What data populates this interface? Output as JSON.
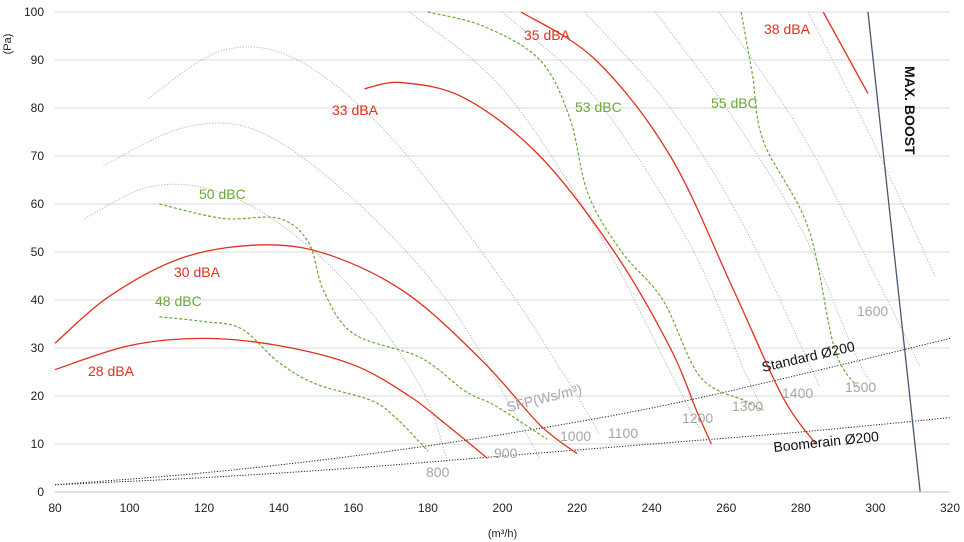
{
  "chart_data": {
    "type": "line",
    "xlabel": "(m³/h)",
    "ylabel": "(Pa)",
    "xlim": [
      80,
      320
    ],
    "ylim": [
      0,
      100
    ],
    "x_ticks": [
      80,
      100,
      120,
      140,
      160,
      180,
      200,
      220,
      240,
      260,
      280,
      300,
      320
    ],
    "y_ticks": [
      0,
      10,
      20,
      30,
      40,
      50,
      60,
      70,
      80,
      90,
      100
    ],
    "grid": "horizontal",
    "colors": {
      "dba": "#e0301e",
      "dbc": "#6aa83a",
      "sfp": "#b4b4b4",
      "duct": "#222222",
      "boost": "#4a5670",
      "grid": "#d9d9d9"
    },
    "sound_power_dba": [
      {
        "name": "28 dBA",
        "points": [
          [
            80,
            25.5
          ],
          [
            100,
            30.5
          ],
          [
            120,
            32
          ],
          [
            140,
            30.5
          ],
          [
            160,
            26.5
          ],
          [
            175,
            20
          ],
          [
            185,
            14
          ],
          [
            196,
            7
          ]
        ]
      },
      {
        "name": "30 dBA",
        "points": [
          [
            80,
            31
          ],
          [
            95,
            41
          ],
          [
            115,
            49
          ],
          [
            137,
            51.5
          ],
          [
            155,
            49
          ],
          [
            175,
            41
          ],
          [
            195,
            27
          ],
          [
            210,
            14
          ],
          [
            220,
            8
          ]
        ]
      },
      {
        "name": "33 dBA",
        "points": [
          [
            163,
            84
          ],
          [
            173,
            85.3
          ],
          [
            190,
            82
          ],
          [
            210,
            70
          ],
          [
            230,
            50
          ],
          [
            245,
            30
          ],
          [
            252,
            17
          ],
          [
            256,
            10
          ]
        ]
      },
      {
        "name": "35 dBA",
        "points": [
          [
            205,
            100
          ],
          [
            225,
            90
          ],
          [
            245,
            70
          ],
          [
            262,
            42
          ],
          [
            275,
            20
          ],
          [
            284,
            10
          ]
        ]
      },
      {
        "name": "38 dBA",
        "points": [
          [
            286,
            100
          ],
          [
            298,
            83
          ]
        ]
      }
    ],
    "sound_pressure_dbc": [
      {
        "name": "48 dBC",
        "points": [
          [
            108,
            36.5
          ],
          [
            120,
            35.5
          ],
          [
            130,
            34
          ],
          [
            140,
            27
          ],
          [
            150,
            22.5
          ],
          [
            165,
            19
          ],
          [
            172,
            15
          ],
          [
            180,
            8.5
          ]
        ]
      },
      {
        "name": "50 dBC",
        "points": [
          [
            108,
            60
          ],
          [
            125,
            57
          ],
          [
            140,
            57
          ],
          [
            148,
            52
          ],
          [
            152,
            42
          ],
          [
            160,
            33
          ],
          [
            178,
            28
          ],
          [
            190,
            21
          ],
          [
            198,
            18
          ],
          [
            212,
            11
          ]
        ]
      },
      {
        "name": "53 dBC",
        "points": [
          [
            180,
            100
          ],
          [
            195,
            97
          ],
          [
            210,
            90
          ],
          [
            218,
            78
          ],
          [
            223,
            62
          ],
          [
            232,
            50
          ],
          [
            243,
            40
          ],
          [
            253,
            24
          ],
          [
            265,
            19
          ],
          [
            270,
            17
          ]
        ]
      },
      {
        "name": "55 dBC",
        "points": [
          [
            264,
            100
          ],
          [
            267,
            87
          ],
          [
            270,
            73
          ],
          [
            282,
            55
          ],
          [
            289,
            30
          ],
          [
            295,
            22
          ]
        ]
      }
    ],
    "sfp_curves": [
      {
        "label": "800",
        "points": [
          [
            88,
            57
          ],
          [
            105,
            63.5
          ],
          [
            122,
            63
          ],
          [
            140,
            56
          ],
          [
            160,
            42
          ],
          [
            178,
            22
          ],
          [
            185,
            7
          ]
        ]
      },
      {
        "label": "900",
        "points": [
          [
            93,
            68
          ],
          [
            115,
            76
          ],
          [
            135,
            75
          ],
          [
            160,
            61
          ],
          [
            185,
            40
          ],
          [
            205,
            14
          ],
          [
            210,
            7
          ]
        ]
      },
      {
        "label": "1000",
        "points": [
          [
            105,
            82
          ],
          [
            125,
            92
          ],
          [
            145,
            90
          ],
          [
            170,
            74
          ],
          [
            200,
            44
          ],
          [
            220,
            20
          ],
          [
            226,
            12
          ]
        ]
      },
      {
        "label": "1100",
        "points": [
          [
            175,
            100
          ],
          [
            200,
            84
          ],
          [
            225,
            55
          ],
          [
            245,
            25
          ],
          [
            253,
            13
          ]
        ]
      },
      {
        "label": "1200",
        "points": [
          [
            200,
            100
          ],
          [
            225,
            82
          ],
          [
            250,
            52
          ],
          [
            265,
            25
          ],
          [
            270,
            17
          ]
        ]
      },
      {
        "label": "1300",
        "points": [
          [
            222,
            100
          ],
          [
            245,
            80
          ],
          [
            265,
            55
          ],
          [
            285,
            22
          ]
        ]
      },
      {
        "label": "1400",
        "points": [
          [
            241,
            100
          ],
          [
            260,
            80
          ],
          [
            280,
            55
          ],
          [
            295,
            28
          ],
          [
            300,
            22
          ]
        ]
      },
      {
        "label": "1500",
        "points": [
          [
            258,
            100
          ],
          [
            280,
            75
          ],
          [
            300,
            45
          ],
          [
            312,
            26
          ]
        ]
      },
      {
        "label": "1600",
        "points": [
          [
            282,
            100
          ],
          [
            300,
            72
          ],
          [
            316,
            45
          ]
        ]
      }
    ],
    "sfp_axis_label": "SFP(Ws/m³)",
    "duct_curves": [
      {
        "name": "Standard Ø200",
        "points": [
          [
            80,
            1.5
          ],
          [
            120,
            4
          ],
          [
            160,
            7.5
          ],
          [
            200,
            12
          ],
          [
            240,
            17.5
          ],
          [
            280,
            24.5
          ],
          [
            320,
            32
          ]
        ]
      },
      {
        "name": "Boomerain Ø200",
        "points": [
          [
            80,
            1.5
          ],
          [
            120,
            3
          ],
          [
            160,
            5
          ],
          [
            200,
            7.5
          ],
          [
            240,
            10
          ],
          [
            280,
            12.5
          ],
          [
            320,
            15.5
          ]
        ]
      }
    ],
    "max_boost": {
      "label": "MAX. BOOST",
      "points": [
        [
          298,
          100
        ],
        [
          312,
          0
        ]
      ]
    }
  }
}
